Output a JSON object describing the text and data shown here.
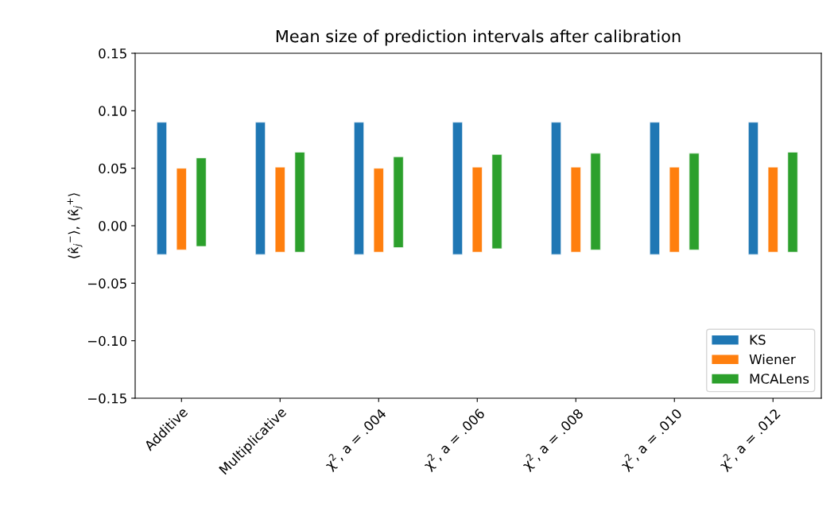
{
  "chart_data": {
    "type": "bar",
    "title": "Mean size of prediction intervals after calibration",
    "ylabel": "⟨κ̂$_{j}$$^{−}$⟩, ⟨κ̂$_{j}$$^{+}$⟩",
    "categories": [
      "Additive",
      "Multiplicative",
      "χ$^{2}$, a = .004",
      "χ$^{2}$, a = .006",
      "χ$^{2}$, a = .008",
      "χ$^{2}$, a = .010",
      "χ$^{2}$, a = .012"
    ],
    "series": [
      {
        "name": "KS",
        "color": "#1f77b4",
        "base": [
          -0.025,
          -0.025,
          -0.025,
          -0.025,
          -0.025,
          -0.025,
          -0.025
        ],
        "values": [
          0.115,
          0.115,
          0.115,
          0.115,
          0.115,
          0.115,
          0.115
        ]
      },
      {
        "name": "Wiener",
        "color": "#ff7f0e",
        "base": [
          -0.021,
          -0.023,
          -0.023,
          -0.023,
          -0.023,
          -0.023,
          -0.023
        ],
        "values": [
          0.071,
          0.074,
          0.073,
          0.074,
          0.074,
          0.074,
          0.074
        ]
      },
      {
        "name": "MCALens",
        "color": "#2ca02c",
        "base": [
          -0.018,
          -0.023,
          -0.019,
          -0.02,
          -0.021,
          -0.021,
          -0.023
        ],
        "values": [
          0.077,
          0.087,
          0.079,
          0.082,
          0.084,
          0.084,
          0.087
        ]
      }
    ],
    "ylim": [
      -0.15,
      0.15
    ],
    "yticks": [
      {
        "value": -0.15,
        "label": "−0.15"
      },
      {
        "value": -0.1,
        "label": "−0.10"
      },
      {
        "value": -0.05,
        "label": "−0.05"
      },
      {
        "value": 0,
        "label": "0.00"
      },
      {
        "value": 0.05,
        "label": "0.05"
      },
      {
        "value": 0.1,
        "label": "0.10"
      },
      {
        "value": 0.15,
        "label": "0.15"
      }
    ],
    "legend": "lower right",
    "grid": false
  }
}
